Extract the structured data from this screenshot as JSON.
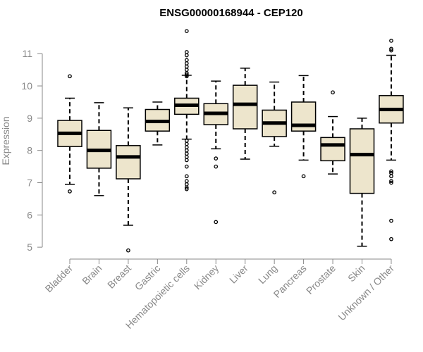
{
  "chart_data": {
    "type": "box",
    "title": "ENSG00000168944 - CEP120",
    "ylabel": "Expression",
    "xlabel": "",
    "ylim": [
      4.85,
      11.9
    ],
    "yticks": [
      5,
      6,
      7,
      8,
      9,
      10,
      11
    ],
    "colors": {
      "box_fill": "#ede5cc",
      "stroke": "#000000",
      "axis": "#888888"
    },
    "categories": [
      "Bladder",
      "Brain",
      "Breast",
      "Gastric",
      "Hematopoietic cells",
      "Kidney",
      "Liver",
      "Lung",
      "Pancreas",
      "Prostate",
      "Skin",
      "Unknown / Other"
    ],
    "boxes": [
      {
        "label": "Bladder",
        "whisker_low": 6.95,
        "q1": 8.12,
        "median": 8.53,
        "q3": 8.93,
        "whisker_high": 9.62,
        "outliers": [
          10.3,
          6.73
        ]
      },
      {
        "label": "Brain",
        "whisker_low": 6.6,
        "q1": 7.45,
        "median": 8.0,
        "q3": 8.62,
        "whisker_high": 9.48,
        "outliers": []
      },
      {
        "label": "Breast",
        "whisker_low": 5.68,
        "q1": 7.12,
        "median": 7.8,
        "q3": 8.15,
        "whisker_high": 9.32,
        "outliers": [
          4.9
        ]
      },
      {
        "label": "Gastric",
        "whisker_low": 8.17,
        "q1": 8.6,
        "median": 8.9,
        "q3": 9.27,
        "whisker_high": 9.5,
        "outliers": []
      },
      {
        "label": "Hematopoietic cells",
        "whisker_low": 8.35,
        "q1": 9.12,
        "median": 9.4,
        "q3": 9.62,
        "whisker_high": 10.33,
        "outliers": [
          11.7,
          11.05,
          10.95,
          10.8,
          10.7,
          10.6,
          10.5,
          10.4,
          10.35,
          10.3,
          8.3,
          8.2,
          8.1,
          8.0,
          7.9,
          7.8,
          7.7,
          7.5,
          7.2,
          7.05,
          6.95,
          6.85,
          6.8
        ]
      },
      {
        "label": "Kidney",
        "whisker_low": 8.05,
        "q1": 8.8,
        "median": 9.15,
        "q3": 9.45,
        "whisker_high": 10.15,
        "outliers": [
          7.75,
          7.5,
          5.78
        ]
      },
      {
        "label": "Liver",
        "whisker_low": 7.73,
        "q1": 8.67,
        "median": 9.43,
        "q3": 10.02,
        "whisker_high": 10.55,
        "outliers": []
      },
      {
        "label": "Lung",
        "whisker_low": 8.13,
        "q1": 8.43,
        "median": 8.85,
        "q3": 9.25,
        "whisker_high": 10.12,
        "outliers": [
          6.7
        ]
      },
      {
        "label": "Pancreas",
        "whisker_low": 7.7,
        "q1": 8.6,
        "median": 8.78,
        "q3": 9.5,
        "whisker_high": 10.32,
        "outliers": [
          7.2
        ]
      },
      {
        "label": "Prostate",
        "whisker_low": 7.27,
        "q1": 7.68,
        "median": 8.17,
        "q3": 8.4,
        "whisker_high": 9.05,
        "outliers": [
          9.8
        ]
      },
      {
        "label": "Skin",
        "whisker_low": 5.03,
        "q1": 6.67,
        "median": 7.87,
        "q3": 8.67,
        "whisker_high": 9.0,
        "outliers": []
      },
      {
        "label": "Unknown / Other",
        "whisker_low": 7.7,
        "q1": 8.85,
        "median": 9.27,
        "q3": 9.7,
        "whisker_high": 10.95,
        "outliers": [
          11.4,
          11.15,
          11.1,
          7.35,
          7.3,
          7.2,
          7.05,
          7.0,
          5.82,
          5.25
        ]
      }
    ]
  }
}
